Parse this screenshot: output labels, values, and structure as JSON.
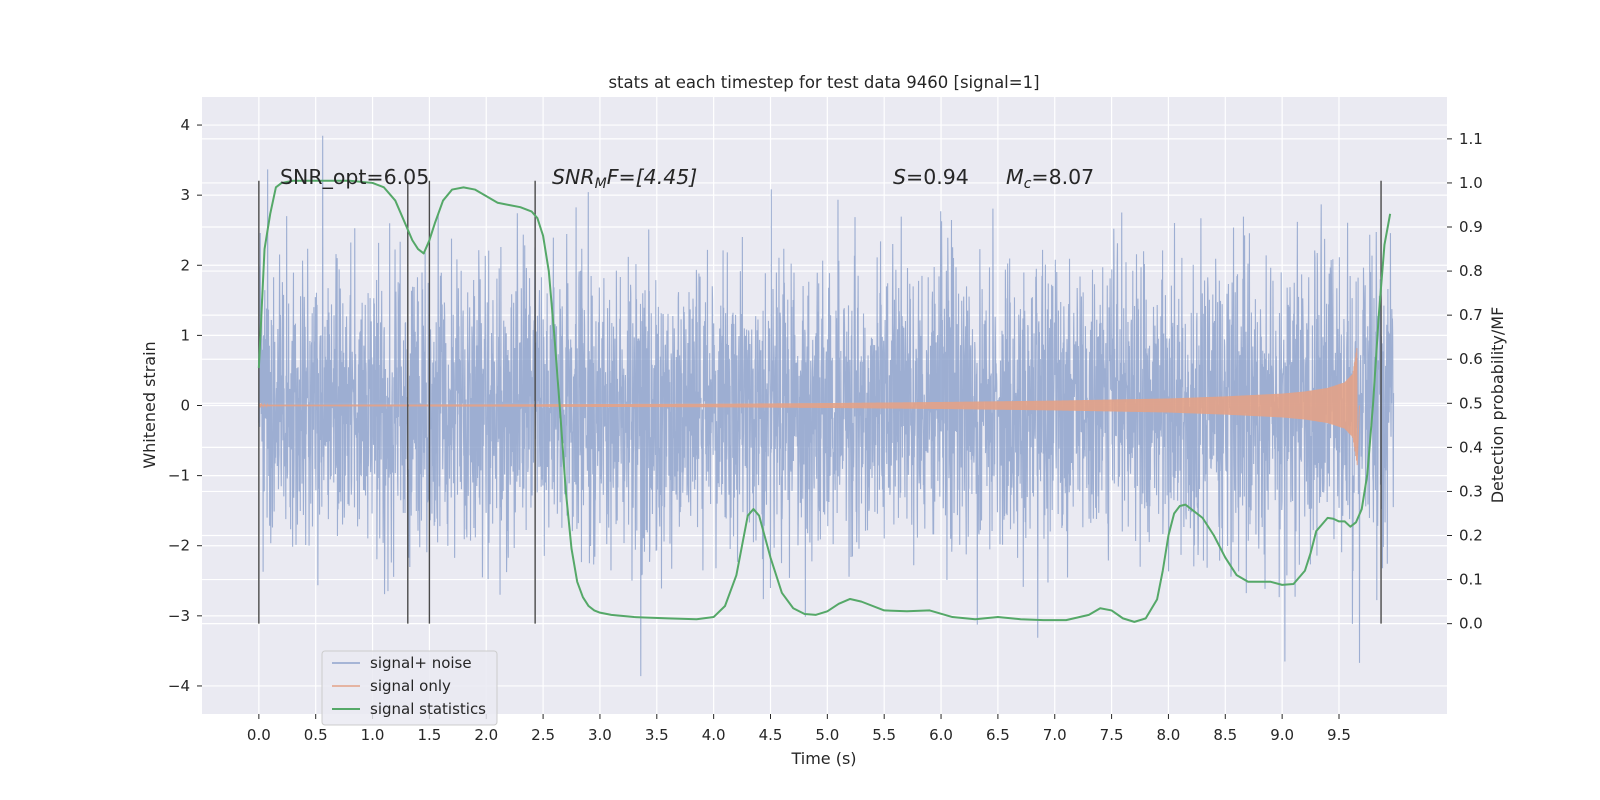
{
  "chart_data": {
    "type": "line",
    "title": "stats at each timestep for test data 9460 [signal=1]",
    "xlabel": "Time (s)",
    "ylabel": "Whitened strain",
    "ylabel_right": "Detection probability/MF",
    "xlim": [
      -0.5,
      10.45
    ],
    "ylim": [
      -4.4,
      4.4
    ],
    "ylim_right": [
      -0.205,
      1.195
    ],
    "x_ticks": [
      0.0,
      0.5,
      1.0,
      1.5,
      2.0,
      2.5,
      3.0,
      3.5,
      4.0,
      4.5,
      5.0,
      5.5,
      6.0,
      6.5,
      7.0,
      7.5,
      8.0,
      8.5,
      9.0,
      9.5
    ],
    "x_tick_labels": [
      "0.0",
      "0.5",
      "1.0",
      "1.5",
      "2.0",
      "2.5",
      "3.0",
      "3.5",
      "4.0",
      "4.5",
      "5.0",
      "5.5",
      "6.0",
      "6.5",
      "7.0",
      "7.5",
      "8.0",
      "8.5",
      "9.0",
      "9.5"
    ],
    "y_ticks": [
      -4,
      -3,
      -2,
      -1,
      0,
      1,
      2,
      3,
      4
    ],
    "y_tick_labels": [
      "−4",
      "−3",
      "−2",
      "−1",
      "0",
      "1",
      "2",
      "3",
      "4"
    ],
    "y_ticks_right": [
      0.0,
      0.1,
      0.2,
      0.3,
      0.4,
      0.5,
      0.6,
      0.7,
      0.8,
      0.9,
      1.0,
      1.1
    ],
    "y_tick_labels_right": [
      "0.0",
      "0.1",
      "0.2",
      "0.3",
      "0.4",
      "0.5",
      "0.6",
      "0.7",
      "0.8",
      "0.9",
      "1.0",
      "1.1"
    ],
    "grid": true,
    "legend_position": "lower-left",
    "annotations": {
      "snr_opt": "SNR_opt=6.05",
      "snr_mf_base": "SNR",
      "snr_mf_sub": "M",
      "snr_mf_rest": "F=[4.45]",
      "s_symbol": "S",
      "s_value": "=0.94",
      "mc_base": "M",
      "mc_sub": "c",
      "mc_value": "=8.07"
    },
    "vertical_markers_s": [
      0.0,
      1.31,
      1.5,
      2.43,
      9.87
    ],
    "series": [
      {
        "name": "signal+ noise",
        "color": "#8fa3cc",
        "axis": "left",
        "t_start": 0.0,
        "t_end": 9.98,
        "amplitude_range": [
          -4.0,
          4.0
        ]
      },
      {
        "name": "signal only",
        "color": "#e3a287",
        "axis": "left",
        "t_start": 0.0,
        "t_end": 9.66,
        "envelope": {
          "t": [
            0.0,
            2.0,
            4.0,
            5.0,
            6.0,
            7.0,
            8.0,
            8.5,
            9.0,
            9.2,
            9.4,
            9.55,
            9.62,
            9.66,
            9.68
          ],
          "amp": [
            0.01,
            0.015,
            0.025,
            0.035,
            0.05,
            0.07,
            0.1,
            0.13,
            0.17,
            0.2,
            0.25,
            0.33,
            0.45,
            0.85,
            0.0
          ]
        }
      },
      {
        "name": "signal statistics",
        "color": "#55a868",
        "axis": "right",
        "x": [
          0.0,
          0.05,
          0.1,
          0.15,
          0.2,
          0.3,
          0.5,
          0.8,
          1.0,
          1.1,
          1.2,
          1.3,
          1.35,
          1.4,
          1.45,
          1.5,
          1.55,
          1.62,
          1.7,
          1.8,
          1.9,
          2.0,
          2.1,
          2.2,
          2.3,
          2.4,
          2.45,
          2.5,
          2.55,
          2.6,
          2.65,
          2.7,
          2.75,
          2.8,
          2.85,
          2.9,
          2.95,
          3.0,
          3.1,
          3.3,
          3.6,
          3.85,
          4.0,
          4.1,
          4.2,
          4.3,
          4.35,
          4.4,
          4.5,
          4.6,
          4.7,
          4.8,
          4.9,
          5.0,
          5.1,
          5.2,
          5.3,
          5.5,
          5.7,
          5.9,
          6.1,
          6.3,
          6.5,
          6.7,
          6.9,
          7.1,
          7.3,
          7.4,
          7.5,
          7.6,
          7.7,
          7.8,
          7.9,
          7.95,
          8.0,
          8.05,
          8.1,
          8.15,
          8.2,
          8.3,
          8.4,
          8.5,
          8.6,
          8.7,
          8.8,
          8.9,
          9.0,
          9.1,
          9.2,
          9.25,
          9.3,
          9.4,
          9.45,
          9.5,
          9.55,
          9.6,
          9.65,
          9.7,
          9.75,
          9.8,
          9.85,
          9.9,
          9.95
        ],
        "values": [
          0.58,
          0.85,
          0.93,
          0.99,
          1.0,
          1.005,
          1.005,
          1.005,
          1.0,
          0.99,
          0.96,
          0.9,
          0.87,
          0.85,
          0.84,
          0.87,
          0.91,
          0.96,
          0.985,
          0.99,
          0.985,
          0.97,
          0.955,
          0.95,
          0.945,
          0.935,
          0.92,
          0.88,
          0.8,
          0.65,
          0.48,
          0.3,
          0.17,
          0.095,
          0.06,
          0.04,
          0.03,
          0.025,
          0.02,
          0.015,
          0.012,
          0.01,
          0.015,
          0.04,
          0.11,
          0.245,
          0.26,
          0.245,
          0.15,
          0.07,
          0.035,
          0.022,
          0.02,
          0.028,
          0.045,
          0.056,
          0.05,
          0.03,
          0.028,
          0.03,
          0.015,
          0.01,
          0.015,
          0.01,
          0.008,
          0.008,
          0.02,
          0.035,
          0.03,
          0.012,
          0.004,
          0.012,
          0.055,
          0.12,
          0.2,
          0.25,
          0.267,
          0.27,
          0.26,
          0.24,
          0.2,
          0.15,
          0.11,
          0.095,
          0.095,
          0.095,
          0.088,
          0.09,
          0.12,
          0.16,
          0.21,
          0.24,
          0.238,
          0.232,
          0.232,
          0.22,
          0.23,
          0.26,
          0.34,
          0.5,
          0.7,
          0.86,
          0.93
        ]
      }
    ]
  }
}
